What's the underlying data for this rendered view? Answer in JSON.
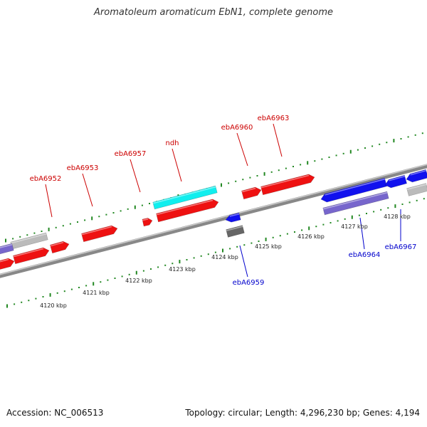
{
  "title": "Aromatoleum aromaticum EbN1, complete genome",
  "accession": "Accession: NC_006513",
  "summary": "Topology: circular; Length: 4,296,230 bp; Genes: 4,194",
  "colors": {
    "forward_gene": "#ee1111",
    "reverse_gene": "#1111ee",
    "highlight_gene": "#11eeee",
    "pseudo_forward": "#bbbbbb",
    "pseudo_reverse": "#7766cc",
    "other_feature": "#666666",
    "tick": "#228822",
    "forward_label": "#cc0000",
    "reverse_label": "#0000cc",
    "backbone": "#888888"
  },
  "scale_labels": [
    "4120 kbp",
    "4121 kbp",
    "4122 kbp",
    "4123 kbp",
    "4124 kbp",
    "4125 kbp",
    "4126 kbp",
    "4127 kbp",
    "4128 kbp"
  ],
  "forward_labels": [
    "ebA6952",
    "ebA6953",
    "ebA6957",
    "ndh",
    "ebA6960",
    "ebA6963"
  ],
  "reverse_labels": [
    "ebA6959",
    "ebA6964",
    "ebA6967"
  ]
}
